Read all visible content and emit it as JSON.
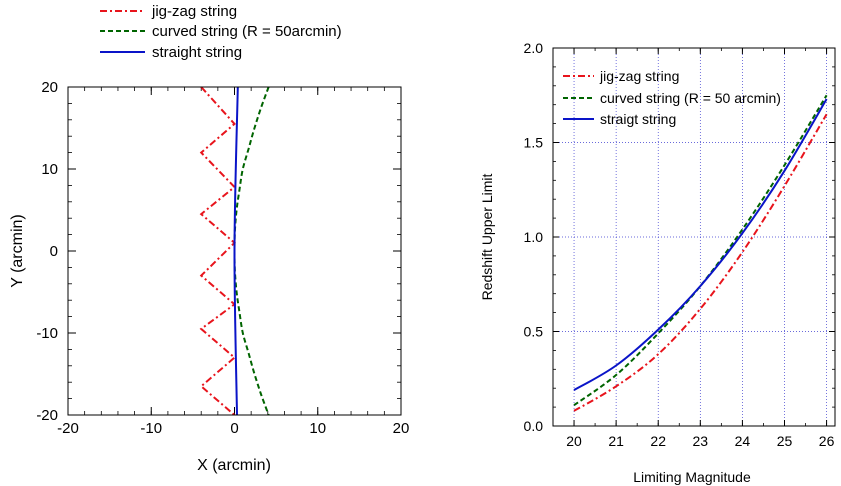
{
  "chart_data": [
    {
      "type": "line",
      "xlabel": "X (arcmin)",
      "ylabel": "Y (arcmin)",
      "xlim": [
        -20,
        20
      ],
      "ylim": [
        -20,
        20
      ],
      "xticks": [
        -20,
        -10,
        0,
        10,
        20
      ],
      "yticks": [
        -20,
        -10,
        0,
        10,
        20
      ],
      "grid": false,
      "legend_position": "above",
      "series": [
        {
          "name": "jig-zag string",
          "color": "#e8141c",
          "dash": "dash-dot",
          "x": [
            -4,
            0,
            -4,
            0,
            -4,
            0,
            -4,
            0,
            -4,
            0,
            -4,
            0,
            -4,
            0,
            -4,
            0
          ],
          "y": [
            20,
            15.5,
            12,
            7.8,
            4.5,
            1,
            -3,
            -6.5,
            -9.5,
            -13,
            -16.5,
            -20,
            -20,
            -20,
            -20,
            -20
          ]
        },
        {
          "name": "curved string (R = 50arcmin)",
          "color": "#006400",
          "dash": "dashed",
          "x": [
            4.1,
            3.2,
            2.4,
            1.7,
            1.0,
            0.6,
            0.25,
            0.05,
            0,
            0.05,
            0.25,
            0.6,
            1.0,
            1.7,
            2.4,
            3.2,
            4.1
          ],
          "y": [
            20,
            17.5,
            15,
            12.5,
            10,
            7.5,
            5,
            2.5,
            0,
            -2.5,
            -5,
            -7.5,
            -10,
            -12.5,
            -15,
            -17.5,
            -20
          ]
        },
        {
          "name": "straight string",
          "color": "#0a14c8",
          "dash": "solid",
          "x": [
            0.4,
            0.0,
            0.3
          ],
          "y": [
            20,
            0,
            -20
          ]
        }
      ]
    },
    {
      "type": "line",
      "xlabel": "Limiting Magnitude",
      "ylabel": "Redshift Upper Limit",
      "xlim": [
        19.5,
        26.2
      ],
      "ylim": [
        0,
        2.0
      ],
      "xticks": [
        20,
        21,
        22,
        23,
        24,
        25,
        26
      ],
      "yticks": [
        "0.0",
        "0.5",
        "1.0",
        "1.5",
        "2.0"
      ],
      "grid": true,
      "legend_position": "top-left",
      "series": [
        {
          "name": "jig-zag string",
          "color": "#e8141c",
          "dash": "dash-dot",
          "x": [
            20,
            21,
            22,
            23,
            24,
            25,
            26
          ],
          "y": [
            0.08,
            0.21,
            0.38,
            0.62,
            0.92,
            1.27,
            1.65
          ]
        },
        {
          "name": "curved string (R = 50 arcmin)",
          "color": "#006400",
          "dash": "dashed",
          "x": [
            20,
            21,
            22,
            23,
            24,
            25,
            26
          ],
          "y": [
            0.11,
            0.27,
            0.49,
            0.74,
            1.04,
            1.38,
            1.75
          ]
        },
        {
          "name": "straigt string",
          "color": "#0a14c8",
          "dash": "solid",
          "x": [
            20,
            21,
            22,
            23,
            24,
            25,
            26
          ],
          "y": [
            0.19,
            0.32,
            0.51,
            0.74,
            1.02,
            1.35,
            1.73
          ]
        }
      ]
    }
  ]
}
